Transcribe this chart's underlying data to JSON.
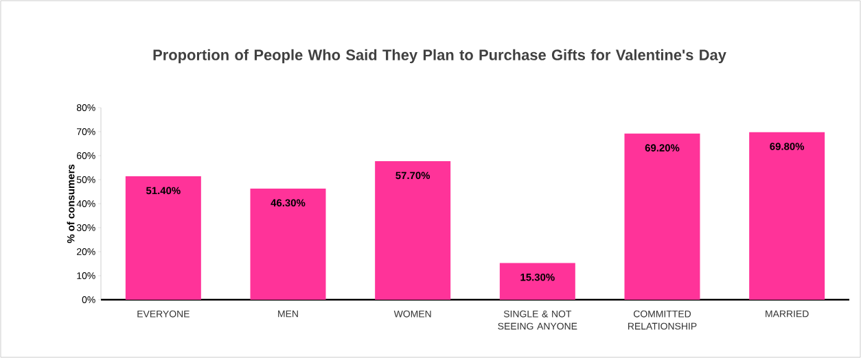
{
  "chart_data": {
    "type": "bar",
    "title": "Proportion of People Who Said They Plan to Purchase Gifts for Valentine's Day",
    "ylabel": "% of consumers",
    "categories": [
      "EVERYONE",
      "MEN",
      "WOMEN",
      "SINGLE & NOT SEEING ANYONE",
      "COMMITTED RELATIONSHIP",
      "MARRIED"
    ],
    "values": [
      51.4,
      46.3,
      57.7,
      15.3,
      69.2,
      69.8
    ],
    "value_labels": [
      "51.40%",
      "46.30%",
      "57.70%",
      "15.30%",
      "69.20%",
      "69.80%"
    ],
    "color": "#ff3399",
    "ylim": [
      0,
      80
    ],
    "yticks": [
      {
        "value": 0,
        "label": "0%"
      },
      {
        "value": 10,
        "label": "10%"
      },
      {
        "value": 20,
        "label": "20%"
      },
      {
        "value": 30,
        "label": "30%"
      },
      {
        "value": 40,
        "label": "40%"
      },
      {
        "value": 50,
        "label": "50%"
      },
      {
        "value": 60,
        "label": "60%"
      },
      {
        "value": 70,
        "label": "70%"
      },
      {
        "value": 80,
        "label": "80%"
      }
    ]
  }
}
